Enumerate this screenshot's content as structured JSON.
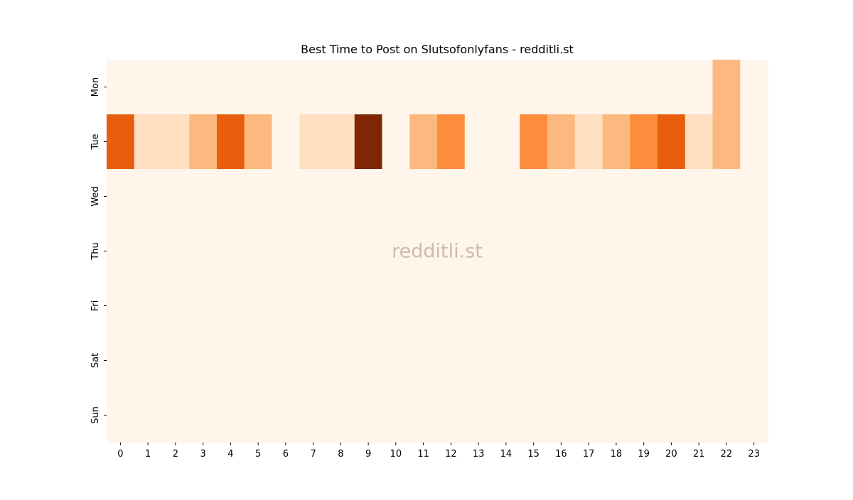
{
  "chart_data": {
    "type": "heatmap",
    "title": "Best Time to Post on Slutsofonlyfans - redditli.st",
    "watermark": "redditli.st",
    "xlabel": "",
    "ylabel": "",
    "x": [
      "0",
      "1",
      "2",
      "3",
      "4",
      "5",
      "6",
      "7",
      "8",
      "9",
      "10",
      "11",
      "12",
      "13",
      "14",
      "15",
      "16",
      "17",
      "18",
      "19",
      "20",
      "21",
      "22",
      "23"
    ],
    "y": [
      "Mon",
      "Tue",
      "Wed",
      "Thu",
      "Fri",
      "Sat",
      "Sun"
    ],
    "values": [
      [
        0,
        0,
        0,
        0,
        0,
        0,
        0,
        0,
        0,
        0,
        0,
        0,
        0,
        0,
        0,
        0,
        0,
        0,
        0,
        0,
        0,
        0,
        2,
        0
      ],
      [
        4,
        1,
        1,
        2,
        4,
        2,
        0,
        1,
        1,
        6,
        0,
        2,
        3,
        0,
        0,
        3,
        2,
        1,
        2,
        3,
        4,
        1,
        2,
        0
      ],
      [
        0,
        0,
        0,
        0,
        0,
        0,
        0,
        0,
        0,
        0,
        0,
        0,
        0,
        0,
        0,
        0,
        0,
        0,
        0,
        0,
        0,
        0,
        0,
        0
      ],
      [
        0,
        0,
        0,
        0,
        0,
        0,
        0,
        0,
        0,
        0,
        0,
        0,
        0,
        0,
        0,
        0,
        0,
        0,
        0,
        0,
        0,
        0,
        0,
        0
      ],
      [
        0,
        0,
        0,
        0,
        0,
        0,
        0,
        0,
        0,
        0,
        0,
        0,
        0,
        0,
        0,
        0,
        0,
        0,
        0,
        0,
        0,
        0,
        0,
        0
      ],
      [
        0,
        0,
        0,
        0,
        0,
        0,
        0,
        0,
        0,
        0,
        0,
        0,
        0,
        0,
        0,
        0,
        0,
        0,
        0,
        0,
        0,
        0,
        0,
        0
      ],
      [
        0,
        0,
        0,
        0,
        0,
        0,
        0,
        0,
        0,
        0,
        0,
        0,
        0,
        0,
        0,
        0,
        0,
        0,
        0,
        0,
        0,
        0,
        0,
        0
      ]
    ],
    "colormap": "Oranges",
    "palette": [
      "#fff5eb",
      "#fee0c1",
      "#fdb87f",
      "#fd8c3c",
      "#e95e0d",
      "#c14204",
      "#7f2704"
    ],
    "legend": "none",
    "grid": false
  }
}
